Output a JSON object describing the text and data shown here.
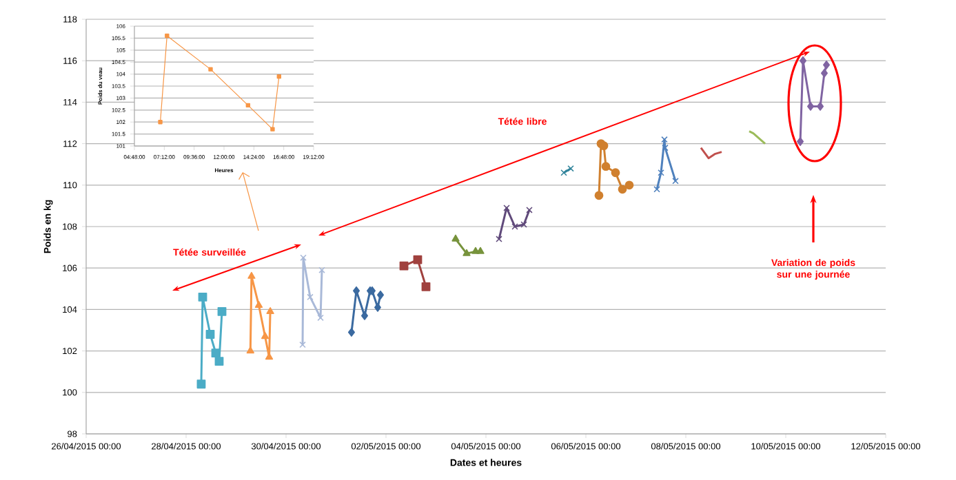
{
  "chart_data": [
    {
      "type": "line",
      "xlabel": "Dates et heures",
      "ylabel": "Poids en kg",
      "xlim": [
        "2015-04-26T00:00",
        "2015-05-12T00:00"
      ],
      "xticks": [
        {
          "value": "2015-04-26T00:00",
          "label": "26/04/2015 00:00"
        },
        {
          "value": "2015-04-28T00:00",
          "label": "28/04/2015 00:00"
        },
        {
          "value": "2015-04-30T00:00",
          "label": "30/04/2015 00:00"
        },
        {
          "value": "2015-05-02T00:00",
          "label": "02/05/2015 00:00"
        },
        {
          "value": "2015-05-04T00:00",
          "label": "04/05/2015 00:00"
        },
        {
          "value": "2015-05-06T00:00",
          "label": "06/05/2015 00:00"
        },
        {
          "value": "2015-05-08T00:00",
          "label": "08/05/2015 00:00"
        },
        {
          "value": "2015-05-10T00:00",
          "label": "10/05/2015 00:00"
        },
        {
          "value": "2015-05-12T00:00",
          "label": "12/05/2015 00:00"
        }
      ],
      "ylim": [
        98,
        118
      ],
      "yticks": [
        98,
        100,
        102,
        104,
        106,
        108,
        110,
        112,
        114,
        116,
        118
      ],
      "grid": "y",
      "line_style": "solid",
      "series": [
        {
          "color": "#4bacc6",
          "marker": "square",
          "x": [
            "2015-04-28T07:16",
            "2015-04-28T07:57",
            "2015-04-28T11:35",
            "2015-04-28T14:14",
            "2015-04-28T15:53",
            "2015-04-28T17:13"
          ],
          "values": [
            100.4,
            104.6,
            102.8,
            101.9,
            101.5,
            103.9
          ]
        },
        {
          "color": "#f79646",
          "marker": "triangle",
          "x": [
            "2015-04-29T06:53",
            "2015-04-29T07:25",
            "2015-04-29T10:55",
            "2015-04-29T13:56",
            "2015-04-29T15:54",
            "2015-04-29T16:25"
          ],
          "values": [
            102.0,
            105.6,
            104.2,
            102.7,
            101.7,
            103.9
          ]
        },
        {
          "color": "#a9b9d8",
          "marker": "cross",
          "x": [
            "2015-04-30T07:57",
            "2015-04-30T08:17",
            "2015-04-30T11:35",
            "2015-04-30T16:34",
            "2015-04-30T17:13"
          ],
          "values": [
            102.3,
            106.5,
            104.6,
            103.6,
            105.9
          ]
        },
        {
          "color": "#3b6aa0",
          "marker": "diamond",
          "x": [
            "2015-05-01T07:26",
            "2015-05-01T09:46",
            "2015-05-01T13:44",
            "2015-05-01T16:23",
            "2015-05-01T17:22",
            "2015-05-01T20:01",
            "2015-05-01T21:21"
          ],
          "values": [
            102.9,
            104.9,
            103.7,
            104.9,
            104.9,
            104.1,
            104.7
          ]
        },
        {
          "color": "#a0413e",
          "marker": "square",
          "x": [
            "2015-05-02T08:37",
            "2015-05-02T15:13",
            "2015-05-02T19:12"
          ],
          "values": [
            106.1,
            106.4,
            105.1
          ]
        },
        {
          "color": "#77933c",
          "marker": "triangle",
          "x": [
            "2015-05-03T09:26",
            "2015-05-03T14:44",
            "2015-05-03T19:02",
            "2015-05-03T21:21"
          ],
          "values": [
            107.4,
            106.7,
            106.8,
            106.8
          ]
        },
        {
          "color": "#604a7b",
          "marker": "cross",
          "x": [
            "2015-05-04T06:17",
            "2015-05-04T09:56",
            "2015-05-04T13:54",
            "2015-05-04T18:13",
            "2015-05-04T20:51"
          ],
          "values": [
            107.4,
            108.9,
            108.0,
            108.1,
            108.8
          ]
        },
        {
          "color": "#31849b",
          "marker": "cross",
          "x": [
            "2015-05-05T13:25",
            "2015-05-05T16:43"
          ],
          "values": [
            110.6,
            110.8
          ]
        },
        {
          "color": "#d0802f",
          "marker": "circle",
          "x": [
            "2015-05-06T06:17",
            "2015-05-06T07:16",
            "2015-05-06T08:37",
            "2015-05-06T09:36",
            "2015-05-06T14:14",
            "2015-05-06T17:33",
            "2015-05-06T20:51"
          ],
          "values": [
            109.5,
            112.0,
            111.9,
            110.9,
            110.6,
            109.8,
            110.0
          ]
        },
        {
          "color": "#4f81bd",
          "marker": "cross",
          "x": [
            "2015-05-07T10:06",
            "2015-05-07T12:05",
            "2015-05-07T13:44",
            "2015-05-07T14:04",
            "2015-05-07T19:02"
          ],
          "values": [
            109.8,
            110.6,
            112.2,
            111.8,
            110.2
          ]
        },
        {
          "color": "#c0504d",
          "marker": "none",
          "x": [
            "2015-05-08T07:16",
            "2015-05-08T10:55",
            "2015-05-08T13:54",
            "2015-05-08T17:13"
          ],
          "values": [
            111.8,
            111.3,
            111.5,
            111.6
          ]
        },
        {
          "color": "#9bbb59",
          "marker": "none",
          "x": [
            "2015-05-09T06:27",
            "2015-05-09T08:26",
            "2015-05-09T14:04"
          ],
          "values": [
            112.6,
            112.5,
            112.0
          ]
        },
        {
          "color": "#8064a2",
          "marker": "diamond",
          "x": [
            "2015-05-10T06:58",
            "2015-05-10T08:17",
            "2015-05-10T11:55",
            "2015-05-10T16:34",
            "2015-05-10T18:32",
            "2015-05-10T19:32"
          ],
          "values": [
            112.1,
            116.0,
            113.8,
            113.8,
            115.4,
            115.8
          ]
        }
      ],
      "annotations": [
        "Tétée surveillée",
        "Tétée libre",
        "Variation de poids sur une journée"
      ]
    },
    {
      "type": "line",
      "xlabel": "Heures",
      "ylabel": "Poids du veau",
      "xlim": [
        4.8,
        19.2
      ],
      "xticks": [
        {
          "value": 4.8,
          "label": "04:48:00"
        },
        {
          "value": 7.2,
          "label": "07:12:00"
        },
        {
          "value": 9.6,
          "label": "09:36:00"
        },
        {
          "value": 12,
          "label": "12:00:00"
        },
        {
          "value": 14.4,
          "label": "14:24:00"
        },
        {
          "value": 16.8,
          "label": "16:48:00"
        },
        {
          "value": 19.2,
          "label": "19:12:00"
        }
      ],
      "ylim": [
        101,
        106
      ],
      "yticks": [
        101,
        101.5,
        102,
        102.5,
        103,
        103.5,
        104,
        104.5,
        105,
        105.5,
        106
      ],
      "grid": "y",
      "marker": "square",
      "line_style": "solid",
      "color": "#f79646",
      "x": [
        6.88,
        7.42,
        10.92,
        13.93,
        15.9,
        16.42
      ],
      "values": [
        102.0,
        105.6,
        104.2,
        102.7,
        101.7,
        103.9
      ]
    }
  ]
}
